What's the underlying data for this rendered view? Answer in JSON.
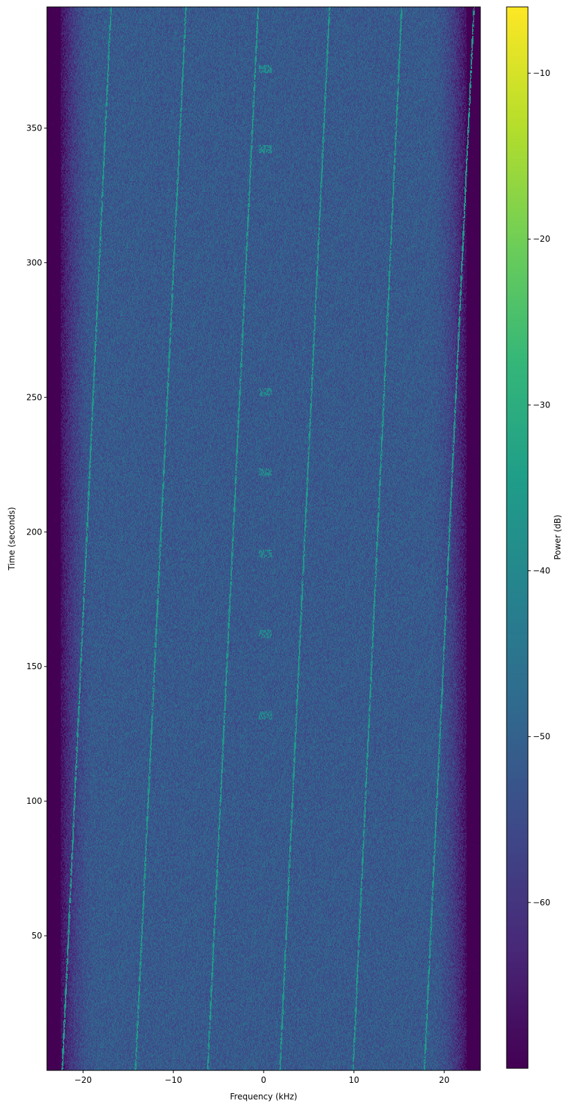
{
  "chart_data": {
    "type": "heatmap",
    "subtype": "spectrogram",
    "title": "",
    "xlabel": "Frequency (kHz)",
    "ylabel": "Time (seconds)",
    "xlim": [
      -24,
      24
    ],
    "ylim": [
      0,
      395
    ],
    "xticks": [
      -20,
      -10,
      0,
      10,
      20
    ],
    "xtick_labels": [
      "−20",
      "−10",
      "0",
      "10",
      "20"
    ],
    "yticks": [
      50,
      100,
      150,
      200,
      250,
      300,
      350
    ],
    "ytick_labels": [
      "50",
      "100",
      "150",
      "200",
      "250",
      "300",
      "350"
    ],
    "grid": false,
    "colormap": "viridis",
    "colorbar": {
      "label": "Power (dB)",
      "range": [
        -70,
        -6
      ],
      "ticks": [
        -10,
        -20,
        -30,
        -40,
        -50,
        -60
      ],
      "tick_labels": [
        "−10",
        "−20",
        "−30",
        "−40",
        "−50",
        "−60"
      ]
    },
    "noise_floor_db": -52,
    "band_edge_khz": 22.5,
    "drifting_tones": [
      {
        "f_start_khz": -22.3,
        "f_end_khz": -16.9
      },
      {
        "f_start_khz": -14.2,
        "f_end_khz": -8.6
      },
      {
        "f_start_khz": -6.2,
        "f_end_khz": -0.6
      },
      {
        "f_start_khz": 1.8,
        "f_end_khz": 7.3
      },
      {
        "f_start_khz": 9.9,
        "f_end_khz": 15.3
      },
      {
        "f_start_khz": 17.8,
        "f_end_khz": 23.3
      }
    ],
    "bursts": {
      "f_khz": 0.2,
      "times_s": [
        132,
        162,
        192,
        222,
        252,
        342,
        372
      ]
    }
  }
}
